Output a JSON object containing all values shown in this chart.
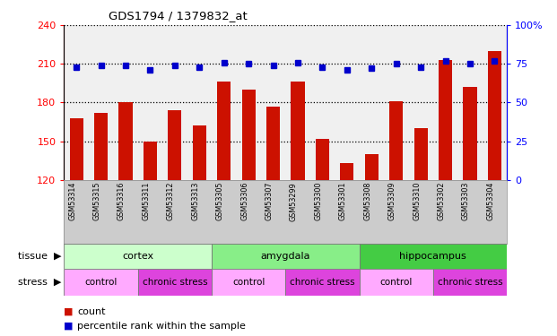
{
  "title": "GDS1794 / 1379832_at",
  "samples": [
    "GSM53314",
    "GSM53315",
    "GSM53316",
    "GSM53311",
    "GSM53312",
    "GSM53313",
    "GSM53305",
    "GSM53306",
    "GSM53307",
    "GSM53299",
    "GSM53300",
    "GSM53301",
    "GSM53308",
    "GSM53309",
    "GSM53310",
    "GSM53302",
    "GSM53303",
    "GSM53304"
  ],
  "counts": [
    168,
    172,
    180,
    150,
    174,
    162,
    196,
    190,
    177,
    196,
    152,
    133,
    140,
    181,
    160,
    213,
    192,
    220
  ],
  "percentiles": [
    73,
    74,
    74,
    71,
    74,
    73,
    76,
    75,
    74,
    76,
    73,
    71,
    72,
    75,
    73,
    77,
    75,
    77
  ],
  "ylim_left": [
    120,
    240
  ],
  "ylim_right": [
    0,
    100
  ],
  "yticks_left": [
    120,
    150,
    180,
    210,
    240
  ],
  "yticks_right": [
    0,
    25,
    50,
    75,
    100
  ],
  "bar_color": "#cc1100",
  "dot_color": "#0000cc",
  "plot_bg": "#f0f0f0",
  "xlabels_bg": "#cccccc",
  "tissue_groups": [
    {
      "label": "cortex",
      "start": 0,
      "end": 6,
      "color": "#ccffcc"
    },
    {
      "label": "amygdala",
      "start": 6,
      "end": 12,
      "color": "#88ee88"
    },
    {
      "label": "hippocampus",
      "start": 12,
      "end": 18,
      "color": "#44cc44"
    }
  ],
  "stress_groups": [
    {
      "label": "control",
      "start": 0,
      "end": 3,
      "color": "#ffaaff"
    },
    {
      "label": "chronic stress",
      "start": 3,
      "end": 6,
      "color": "#dd44dd"
    },
    {
      "label": "control",
      "start": 6,
      "end": 9,
      "color": "#ffaaff"
    },
    {
      "label": "chronic stress",
      "start": 9,
      "end": 12,
      "color": "#dd44dd"
    },
    {
      "label": "control",
      "start": 12,
      "end": 15,
      "color": "#ffaaff"
    },
    {
      "label": "chronic stress",
      "start": 15,
      "end": 18,
      "color": "#dd44dd"
    }
  ]
}
